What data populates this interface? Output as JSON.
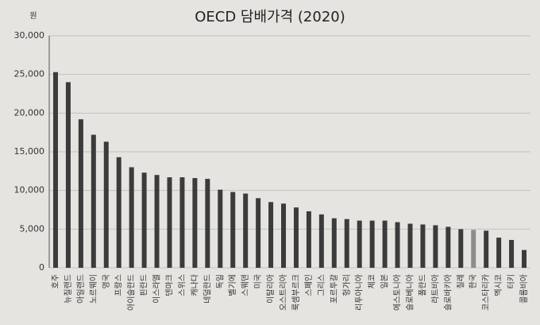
{
  "chart_data": {
    "type": "bar",
    "title": "OECD 담배가격 (2020)",
    "y_label": "원",
    "categories": [
      "호주",
      "뉴질랜드",
      "아일랜드",
      "노르웨이",
      "영국",
      "프랑스",
      "아이슬란드",
      "핀란드",
      "이스라엘",
      "덴마크",
      "스위스",
      "캐나다",
      "네덜란드",
      "독일",
      "벨기에",
      "스웨덴",
      "미국",
      "이탈리아",
      "오스트리아",
      "룩셈부르크",
      "스페인",
      "그리스",
      "포르투갈",
      "헝가리",
      "리투아니아",
      "체코",
      "일본",
      "에스토니아",
      "슬로베니아",
      "폴란드",
      "라트비아",
      "슬로바키아",
      "칠레",
      "한국",
      "코스타리카",
      "멕시코",
      "터키",
      "콜롬비아"
    ],
    "values": [
      25300,
      24000,
      19200,
      17200,
      16300,
      14300,
      13000,
      12300,
      12000,
      11700,
      11700,
      11600,
      11500,
      10100,
      9800,
      9600,
      9000,
      8500,
      8300,
      7800,
      7300,
      6900,
      6400,
      6300,
      6100,
      6100,
      6100,
      5900,
      5700,
      5600,
      5500,
      5300,
      5000,
      4900,
      4800,
      3900,
      3600,
      2300
    ],
    "colors": [
      "#3b3b3b",
      "#3b3b3b",
      "#3b3b3b",
      "#3b3b3b",
      "#3b3b3b",
      "#3b3b3b",
      "#3b3b3b",
      "#3b3b3b",
      "#3b3b3b",
      "#3b3b3b",
      "#3b3b3b",
      "#3b3b3b",
      "#3b3b3b",
      "#3b3b3b",
      "#3b3b3b",
      "#3b3b3b",
      "#3b3b3b",
      "#3b3b3b",
      "#3b3b3b",
      "#3b3b3b",
      "#3b3b3b",
      "#3b3b3b",
      "#3b3b3b",
      "#3b3b3b",
      "#3b3b3b",
      "#3b3b3b",
      "#3b3b3b",
      "#3b3b3b",
      "#3b3b3b",
      "#3b3b3b",
      "#3b3b3b",
      "#3b3b3b",
      "#3b3b3b",
      "#8c8c8c",
      "#3b3b3b",
      "#3b3b3b",
      "#3b3b3b",
      "#3b3b3b"
    ],
    "ylim": [
      0,
      30000
    ],
    "yticks": [
      0,
      {
        "value": 5000,
        "label": "5,000"
      },
      {
        "value": 10000,
        "label": "10,000"
      },
      {
        "value": 15000,
        "label": "15,000"
      },
      {
        "value": 20000,
        "label": "20,000"
      },
      {
        "value": 25000,
        "label": "25,000"
      },
      {
        "value": 30000,
        "label": "30,000"
      }
    ],
    "grid": true
  }
}
